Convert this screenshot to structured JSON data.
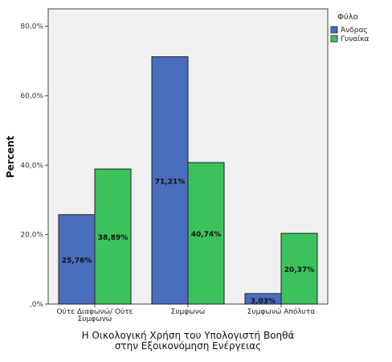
{
  "chart_data": {
    "type": "bar",
    "categories": [
      "Ούτε Διαφωνώ/ Ούτε Συμφωνώ",
      "Συμφωνώ",
      "Συμφωνώ Απόλυτα"
    ],
    "category_label_lines": [
      [
        "Ούτε Διαφωνώ/ Ούτε",
        "Συμφωνώ"
      ],
      [
        "Συμφωνώ"
      ],
      [
        "Συμφωνώ Απόλυτα"
      ]
    ],
    "series": [
      {
        "name": "Άνδρας",
        "color": "#4a6cbd",
        "values": [
          25.76,
          71.21,
          3.03
        ],
        "labels": [
          "25,76%",
          "71,21%",
          "3,03%"
        ]
      },
      {
        "name": "Γυναίκα",
        "color": "#3cc25c",
        "values": [
          38.89,
          40.74,
          20.37
        ],
        "labels": [
          "38,89%",
          "40,74%",
          "20,37%"
        ]
      }
    ],
    "ylim": [
      0,
      85
    ],
    "yticks": [
      0,
      20,
      40,
      60,
      80
    ],
    "ytick_labels": [
      ",0%",
      "20,0%",
      "40,0%",
      "60,0%",
      "80,0%"
    ],
    "ylabel": "Percent",
    "xlabel_lines": [
      "Η Οικολογική Χρήση του Υπολογιστή Βοηθά",
      "στην Εξοικονόμηση Ενέργειας"
    ],
    "legend_title": "Φύλο",
    "legend_position": "top-right, outside plot",
    "grid": false,
    "plot_background": "#f0f0f0"
  }
}
